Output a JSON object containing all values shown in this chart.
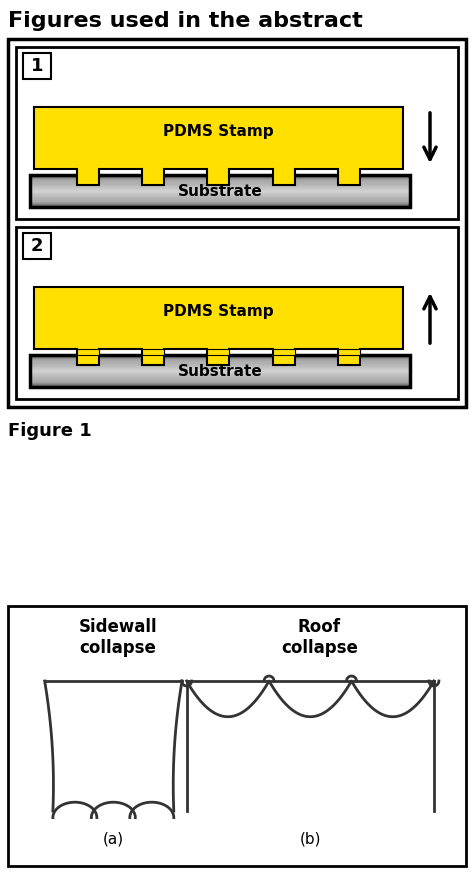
{
  "title": "Figures used in the abstract",
  "figure1_label": "Figure 1",
  "panel1_number": "1",
  "panel2_number": "2",
  "pdms_label": "PDMS Stamp",
  "substrate_label": "Substrate",
  "sidewall_label": "Sidewall\ncollapse",
  "roof_label": "Roof\ncollapse",
  "label_a": "(a)",
  "label_b": "(b)",
  "yellow": "#FFE000",
  "black": "#000000",
  "white": "#FFFFFF",
  "bg": "#FFFFFF"
}
